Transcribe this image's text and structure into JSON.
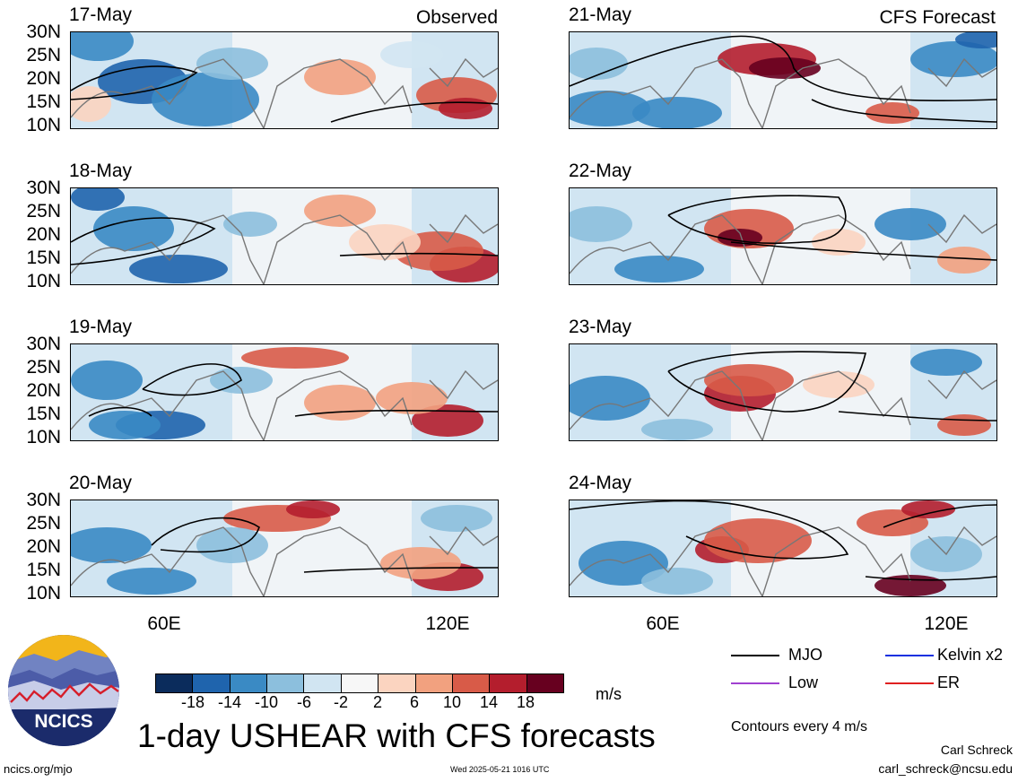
{
  "panels_left": {
    "tag": "Observed",
    "dates": [
      "17-May",
      "18-May",
      "19-May",
      "20-May"
    ]
  },
  "panels_right": {
    "tag": "CFS Forecast",
    "dates": [
      "21-May",
      "22-May",
      "23-May",
      "24-May"
    ]
  },
  "lat_labels": [
    "30N",
    "25N",
    "20N",
    "15N",
    "10N"
  ],
  "lon_labels": [
    "60E",
    "120E"
  ],
  "colorbar": {
    "ticks": [
      "-18",
      "-14",
      "-10",
      "-6",
      "-2",
      "2",
      "6",
      "10",
      "14",
      "18"
    ],
    "colors": [
      "#0b2c5c",
      "#1f64ad",
      "#3a8ac4",
      "#8cbfdd",
      "#d1e5f2",
      "#f7f7f7",
      "#fbd4c0",
      "#f2a17f",
      "#d85b48",
      "#b41e2d",
      "#67001f"
    ],
    "units": "m/s"
  },
  "legend": {
    "items": [
      {
        "label": "MJO",
        "color": "#000000"
      },
      {
        "label": "Kelvin x2",
        "color": "#1030e0"
      },
      {
        "label": "Low",
        "color": "#a040d0"
      },
      {
        "label": "ER",
        "color": "#e02020"
      }
    ],
    "contour_note": "Contours every 4 m/s"
  },
  "logo": {
    "text": "NCICS"
  },
  "title": "1-day USHEAR with CFS forecasts",
  "footer": {
    "url": "ncics.org/mjo",
    "timestamp": "Wed 2025-05-21 1016 UTC",
    "author": "Carl Schreck",
    "email": "carl_schreck@ncsu.edu"
  }
}
